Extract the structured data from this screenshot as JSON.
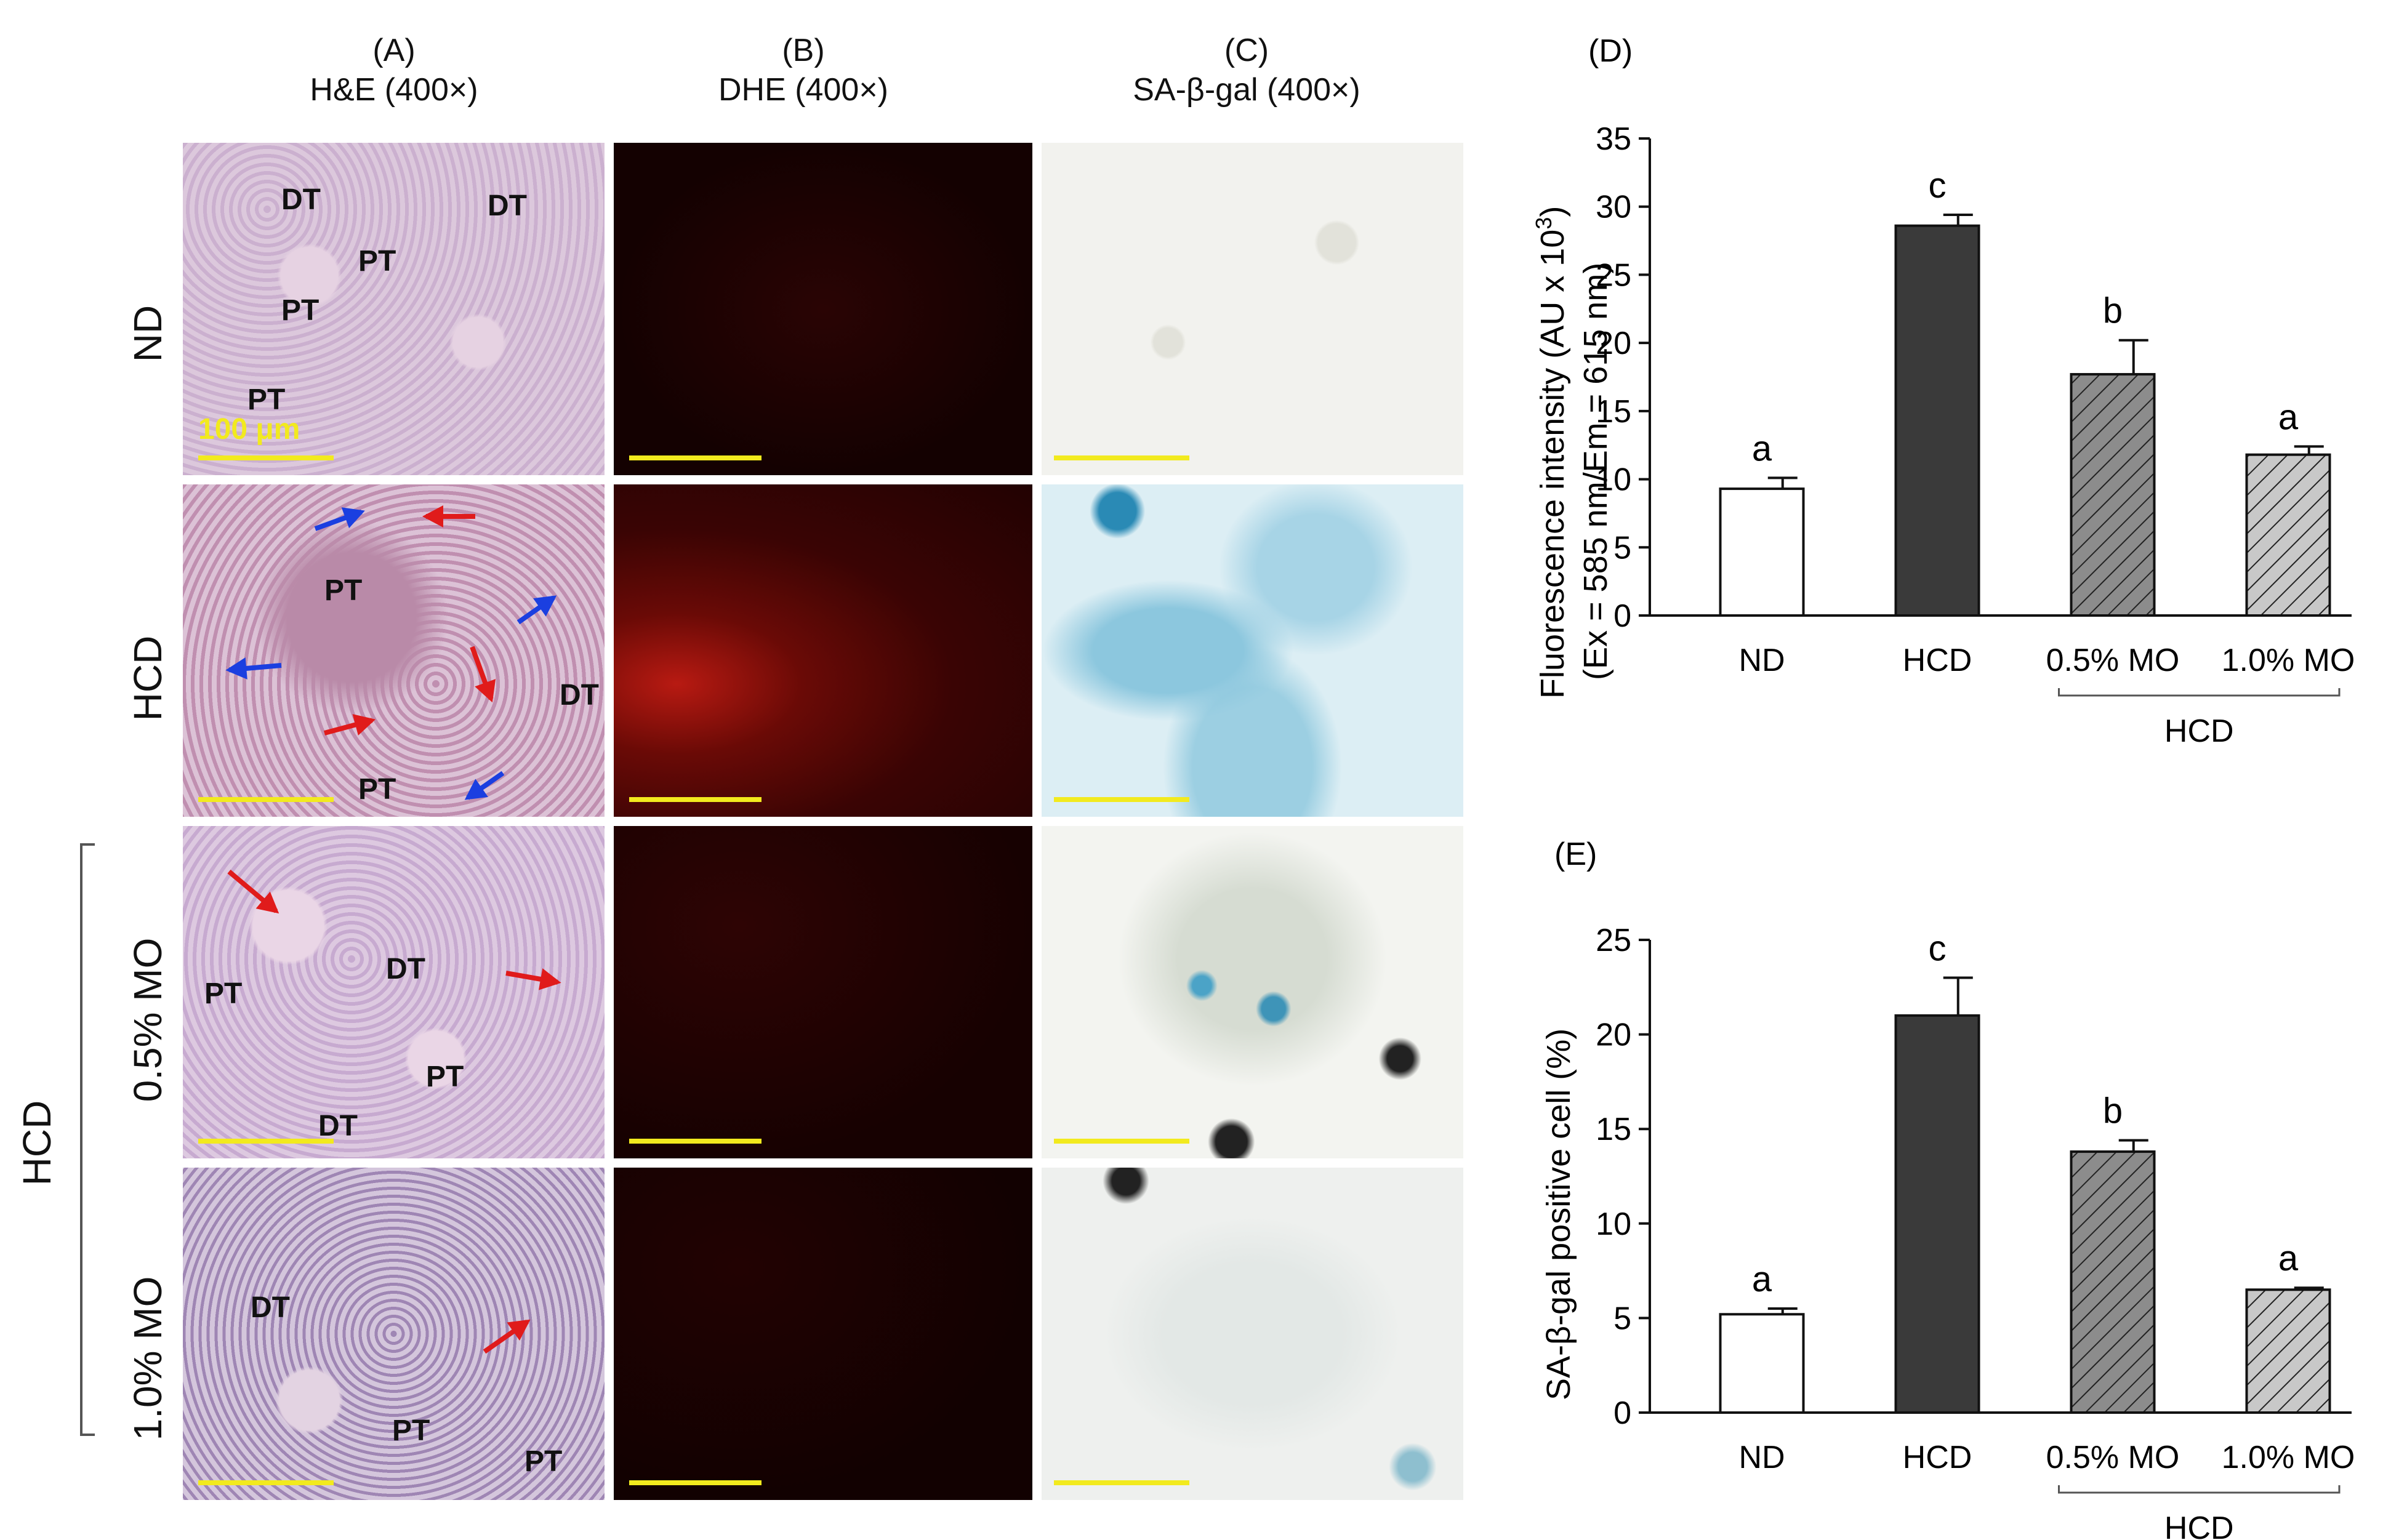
{
  "columns": [
    {
      "letter": "(A)",
      "title": "H&E (400×)"
    },
    {
      "letter": "(B)",
      "title": "DHE (400×)"
    },
    {
      "letter": "(C)",
      "title": "SA-β-gal (400×)"
    }
  ],
  "rows": [
    "ND",
    "HCD",
    "0.5% MO",
    "1.0% MO"
  ],
  "group_label": "HCD",
  "scale_text": "100 μm",
  "he_labels": {
    "nd": [
      "DT",
      "DT",
      "PT",
      "PT",
      "PT"
    ],
    "hcd": [
      "PT",
      "DT",
      "PT"
    ],
    "mo05": [
      "PT",
      "DT",
      "PT",
      "DT"
    ],
    "mo10": [
      "DT",
      "PT",
      "PT"
    ]
  },
  "colors": {
    "he_bg": "#d9c4d8",
    "dhe_bg": "#1a0202",
    "sa_bg": "#f2f2ee",
    "sa_blue": "#4ba3c7",
    "scale": "#f2ea1e",
    "arrow_red": "#e01b1b",
    "arrow_blue": "#1b3fe0",
    "bar_white": "#ffffff",
    "bar_dark": "#3a3a3a",
    "bar_hatch_dark": "#8c8c8c",
    "bar_hatch_light": "#c8c8c8"
  },
  "chart_data": [
    {
      "panel": "(D)",
      "type": "bar",
      "categories": [
        "ND",
        "HCD",
        "0.5% MO",
        "1.0% MO"
      ],
      "values": [
        9.3,
        28.6,
        17.7,
        11.8
      ],
      "errors": [
        0.8,
        0.8,
        2.5,
        0.6
      ],
      "letters": [
        "a",
        "c",
        "b",
        "a"
      ],
      "ylabel_line1": "Fluorescence intensity (AU x 10",
      "ylabel_sup": "3",
      "ylabel_line1_end": ")",
      "ylabel_line2": "(Ex = 585 nm/Em = 615 nm)",
      "ylim": [
        0,
        35
      ],
      "yticks": [
        0,
        5,
        10,
        15,
        20,
        25,
        30,
        35
      ],
      "group_bracket_label": "HCD"
    },
    {
      "panel": "(E)",
      "type": "bar",
      "categories": [
        "ND",
        "HCD",
        "0.5% MO",
        "1.0% MO"
      ],
      "values": [
        5.2,
        21.0,
        13.8,
        6.5
      ],
      "errors": [
        0.3,
        2.0,
        0.6,
        0.1
      ],
      "letters": [
        "a",
        "c",
        "b",
        "a"
      ],
      "ylabel": "SA-β-gal positive cell (%)",
      "ylim": [
        0,
        25
      ],
      "yticks": [
        0,
        5,
        10,
        15,
        20,
        25
      ],
      "group_bracket_label": "HCD"
    }
  ]
}
